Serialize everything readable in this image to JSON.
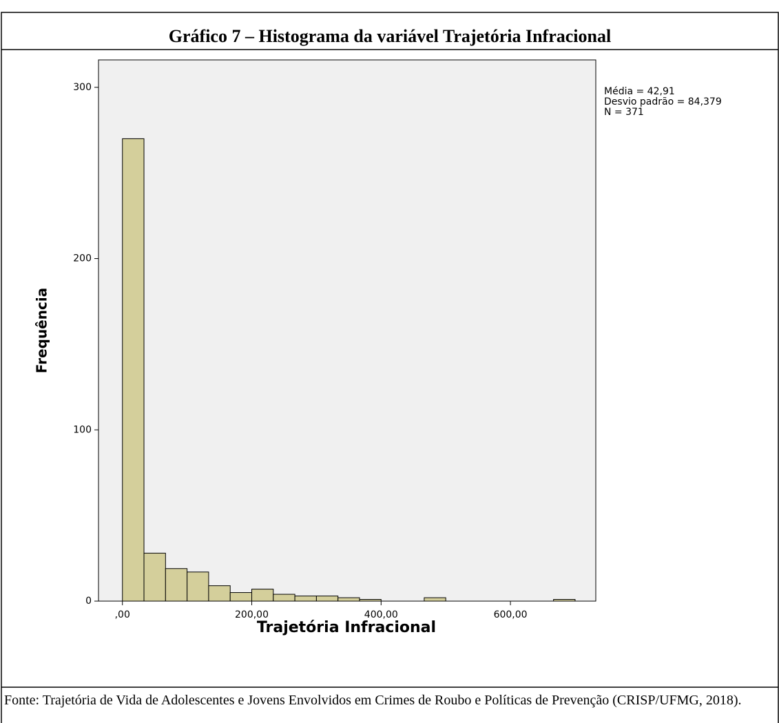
{
  "chart_data": {
    "type": "histogram",
    "title": "Gráfico 7 – Histograma da variável Trajetória Infracional",
    "xlabel": "Trajetória Infracional",
    "ylabel": "Frequência",
    "bins": [
      0,
      33.33,
      66.67,
      100,
      133.33,
      166.67,
      200,
      233.33,
      266.67,
      300,
      333.33,
      366.67,
      400,
      433.33,
      466.67,
      500,
      533.33,
      566.67,
      600,
      633.33,
      666.67,
      700
    ],
    "counts": [
      270,
      28,
      19,
      17,
      9,
      5,
      7,
      4,
      3,
      3,
      2,
      1,
      0,
      0,
      2,
      0,
      0,
      0,
      0,
      0,
      1
    ],
    "color": "#d4cf9b",
    "xlim": [
      -37,
      732
    ],
    "ylim": [
      0,
      316
    ],
    "xticks": [
      {
        "value": 0,
        "label": ",00"
      },
      {
        "value": 200,
        "label": "200,00"
      },
      {
        "value": 400,
        "label": "400,00"
      },
      {
        "value": 600,
        "label": "600,00"
      }
    ],
    "yticks": [
      0,
      100,
      200,
      300
    ],
    "stats": [
      "Média = 42,91",
      "Desvio padrão = 84,379",
      "N = 371"
    ],
    "source": "Fonte: Trajetória de Vida de Adolescentes e Jovens Envolvidos em Crimes de Roubo e Políticas de Prevenção (CRISP/UFMG, 2018)."
  }
}
